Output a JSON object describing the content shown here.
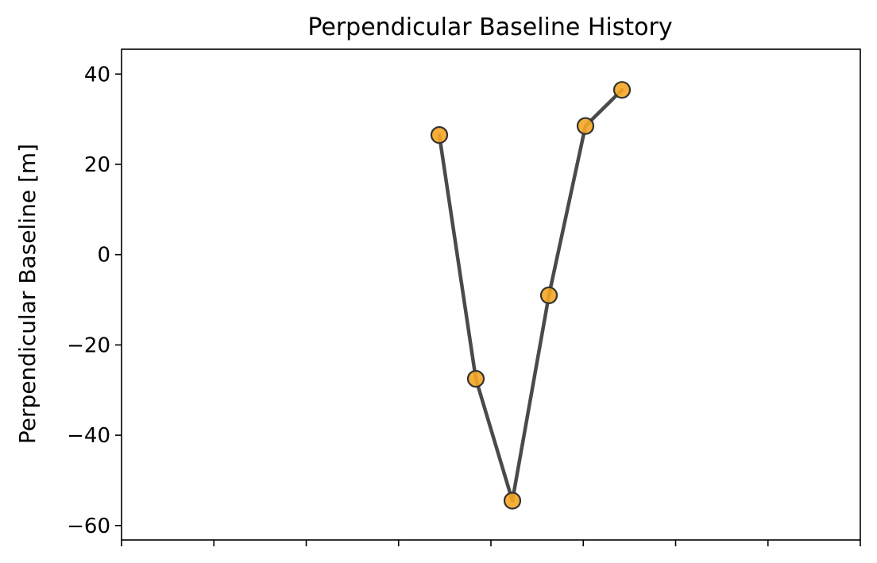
{
  "chart_data": {
    "type": "line",
    "title": "Perpendicular Baseline History",
    "xlabel": "",
    "ylabel": "Perpendicular Baseline [m]",
    "ylim": [
      -63.2,
      45.5
    ],
    "yticks": [
      40,
      20,
      0,
      -20,
      -40,
      -60
    ],
    "ytick_labels": [
      "40",
      "20",
      "0",
      "−20",
      "−40",
      "−60"
    ],
    "x_tick_count": 9,
    "xticks_labeled": false,
    "grid": false,
    "legend": false,
    "series": [
      {
        "values": [
          26.5,
          -27.5,
          -54.5,
          -9.0,
          28.5,
          36.5
        ],
        "x_index": [
          0,
          1,
          2,
          3,
          4,
          5
        ],
        "line_color": "#4a4a4a",
        "marker_fill": "#f5a623",
        "marker_edge": "#333333"
      }
    ]
  }
}
